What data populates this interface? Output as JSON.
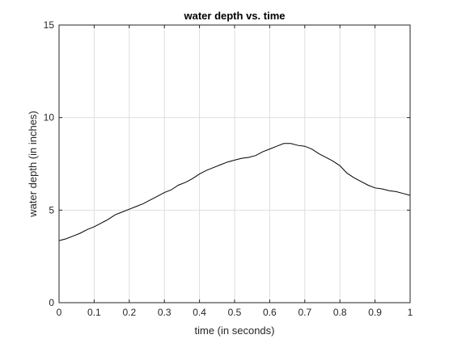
{
  "chart_data": {
    "type": "line",
    "title": "water depth vs. time",
    "xlabel": "time (in seconds)",
    "ylabel": "water depth (in inches)",
    "xlim": [
      0,
      1
    ],
    "ylim": [
      0,
      15
    ],
    "xticks": [
      "0",
      "0.1",
      "0.2",
      "0.3",
      "0.4",
      "0.5",
      "0.6",
      "0.7",
      "0.8",
      "0.9",
      "1"
    ],
    "yticks": [
      "0",
      "5",
      "10",
      "15"
    ],
    "grid": true,
    "line_color": "#000000",
    "series": [
      {
        "x": [
          0,
          0.02,
          0.04,
          0.06,
          0.08,
          0.1,
          0.12,
          0.14,
          0.16,
          0.18,
          0.2,
          0.22,
          0.24,
          0.26,
          0.28,
          0.3,
          0.32,
          0.34,
          0.36,
          0.38,
          0.4,
          0.42,
          0.44,
          0.46,
          0.48,
          0.5,
          0.52,
          0.54,
          0.56,
          0.58,
          0.6,
          0.62,
          0.64,
          0.66,
          0.68,
          0.7,
          0.72,
          0.74,
          0.76,
          0.78,
          0.8,
          0.82,
          0.84,
          0.86,
          0.88,
          0.9,
          0.92,
          0.94,
          0.96,
          0.98,
          1.0
        ],
        "y": [
          3.35,
          3.45,
          3.6,
          3.75,
          3.95,
          4.1,
          4.3,
          4.5,
          4.75,
          4.9,
          5.05,
          5.2,
          5.35,
          5.55,
          5.75,
          5.95,
          6.1,
          6.35,
          6.5,
          6.7,
          6.95,
          7.15,
          7.3,
          7.45,
          7.6,
          7.7,
          7.8,
          7.85,
          7.95,
          8.15,
          8.3,
          8.45,
          8.6,
          8.6,
          8.5,
          8.45,
          8.3,
          8.05,
          7.85,
          7.65,
          7.4,
          7.0,
          6.75,
          6.55,
          6.35,
          6.2,
          6.15,
          6.05,
          6.0,
          5.9,
          5.8
        ]
      }
    ]
  }
}
